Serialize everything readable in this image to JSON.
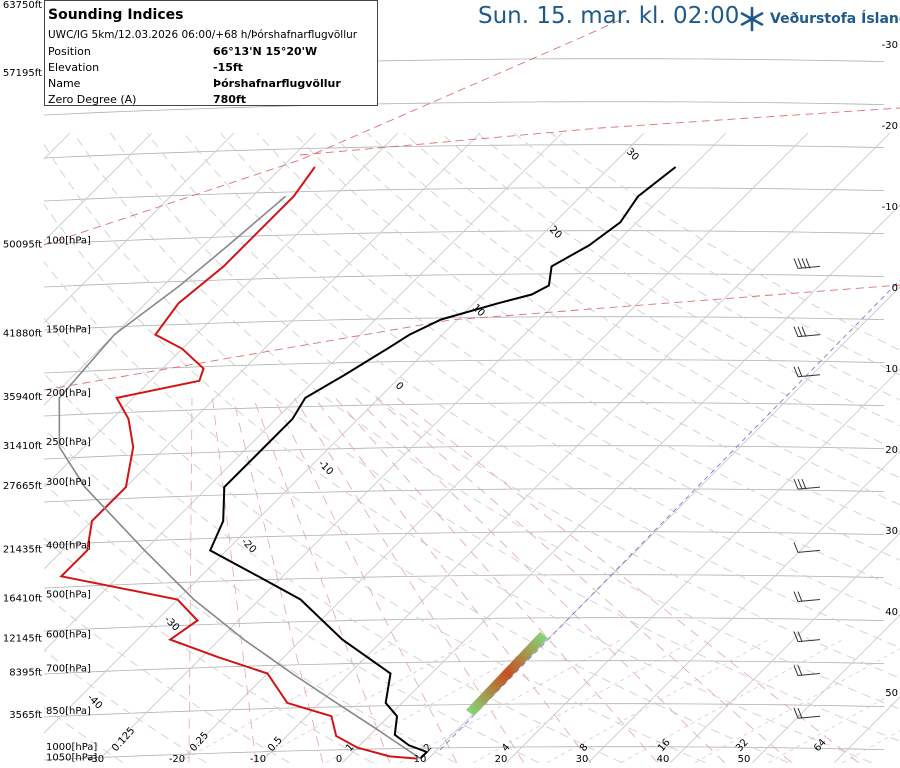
{
  "info_panel": {
    "title": "Sounding Indices",
    "subtitle": "UWC/IG 5km/12.03.2026 06:00/+68 h/Þórshafnarflugvöllur",
    "rows": [
      {
        "label": "Position",
        "value": "66°13'N 15°20'W"
      },
      {
        "label": "Elevation",
        "value": "-15ft"
      },
      {
        "label": "Name",
        "value": "Þórshafnarflugvöllur"
      },
      {
        "label": "Zero Degree (A)",
        "value": "780ft"
      }
    ]
  },
  "header": {
    "datetime": "Sun. 15. mar. kl. 02:00"
  },
  "logo": {
    "text": "Veðurstofa Íslands",
    "icon": "snowflake-icon",
    "color": "#1e5a8c"
  },
  "chart_data": {
    "type": "line",
    "subtype": "skew-T log-p diagram",
    "pressure_ticks": [
      {
        "p": 100,
        "label": "100[hPa]",
        "alt": "50095ft"
      },
      {
        "p": 150,
        "label": "150[hPa]",
        "alt": "41880ft"
      },
      {
        "p": 200,
        "label": "200[hPa]",
        "alt": "35940ft"
      },
      {
        "p": 250,
        "label": "250[hPa]",
        "alt": "31410ft"
      },
      {
        "p": 300,
        "label": "300[hPa]",
        "alt": "27665ft"
      },
      {
        "p": 400,
        "label": "400[hPa]",
        "alt": "21435ft"
      },
      {
        "p": 500,
        "label": "500[hPa]",
        "alt": "16410ft"
      },
      {
        "p": 600,
        "label": "600[hPa]",
        "alt": "12145ft"
      },
      {
        "p": 700,
        "label": "700[hPa]",
        "alt": "8395ft"
      },
      {
        "p": 850,
        "label": "850[hPa]",
        "alt": "3565ft"
      },
      {
        "p": 1000,
        "label": "1000[hPa]",
        "alt": ""
      },
      {
        "p": 1050,
        "label": "1050[hPa]",
        "alt": ""
      }
    ],
    "top_altitude": "63750ft",
    "upper_altitude": "57195ft",
    "bottom_temp_labels": [
      "-30",
      "-20",
      "-10",
      "0",
      "10",
      "20",
      "30",
      "40",
      "50"
    ],
    "mixing_ratio_labels": [
      "0.125",
      "0.25",
      "0.5",
      "1",
      "2",
      "4",
      "8",
      "16",
      "32",
      "64"
    ],
    "right_axis_labels": [
      "-30",
      "-20",
      "-10",
      "0",
      "10",
      "20",
      "30",
      "40",
      "50"
    ],
    "isotherm_inline_labels": [
      "30",
      "20",
      "10",
      "0",
      "-10",
      "-20",
      "-30",
      "-40"
    ],
    "series": [
      {
        "role": "temperature",
        "color": "#000000",
        "points": [
          [
            1030,
            -1
          ],
          [
            1000,
            -1
          ],
          [
            970,
            -4
          ],
          [
            925,
            -7
          ],
          [
            850,
            -9
          ],
          [
            800,
            -12
          ],
          [
            700,
            -15
          ],
          [
            600,
            -25
          ],
          [
            500,
            -35
          ],
          [
            450,
            -43
          ],
          [
            400,
            -52
          ],
          [
            350,
            -54
          ],
          [
            300,
            -58
          ],
          [
            250,
            -58
          ],
          [
            220,
            -58
          ],
          [
            200,
            -59
          ],
          [
            180,
            -57
          ],
          [
            160,
            -55
          ],
          [
            150,
            -54
          ],
          [
            140,
            -52
          ],
          [
            130,
            -47
          ],
          [
            125,
            -44
          ],
          [
            120,
            -43
          ],
          [
            110,
            -45
          ],
          [
            100,
            -43
          ],
          [
            90,
            -42
          ],
          [
            80,
            -43
          ],
          [
            70,
            -42
          ]
        ]
      },
      {
        "role": "dewpoint",
        "color": "#d21414",
        "points": [
          [
            1030,
            -1.5
          ],
          [
            1020,
            -5
          ],
          [
            980,
            -10
          ],
          [
            930,
            -14
          ],
          [
            850,
            -17
          ],
          [
            800,
            -24
          ],
          [
            700,
            -30
          ],
          [
            650,
            -38
          ],
          [
            600,
            -46
          ],
          [
            550,
            -45
          ],
          [
            500,
            -50
          ],
          [
            450,
            -67
          ],
          [
            400,
            -67
          ],
          [
            350,
            -70
          ],
          [
            300,
            -70
          ],
          [
            250,
            -74
          ],
          [
            220,
            -78
          ],
          [
            200,
            -82
          ],
          [
            185,
            -74
          ],
          [
            175,
            -75
          ],
          [
            160,
            -80
          ],
          [
            150,
            -85
          ],
          [
            130,
            -86
          ],
          [
            110,
            -85
          ],
          [
            80,
            -85
          ],
          [
            70,
            -86
          ]
        ]
      },
      {
        "role": "parcel",
        "color": "#888888",
        "points": [
          [
            1030,
            -1
          ],
          [
            900,
            -10
          ],
          [
            800,
            -18
          ],
          [
            700,
            -27
          ],
          [
            600,
            -37
          ],
          [
            500,
            -48
          ],
          [
            400,
            -60
          ],
          [
            300,
            -75
          ],
          [
            250,
            -83
          ],
          [
            200,
            -89
          ],
          [
            150,
            -90
          ],
          [
            120,
            -88
          ],
          [
            100,
            -87
          ],
          [
            80,
            -86
          ]
        ]
      }
    ],
    "wind_barbs": [
      {
        "p": 110,
        "kt": 35
      },
      {
        "p": 150,
        "kt": 30
      },
      {
        "p": 180,
        "kt": 15
      },
      {
        "p": 300,
        "kt": 25
      },
      {
        "p": 400,
        "kt": 10
      },
      {
        "p": 500,
        "kt": 15
      },
      {
        "p": 600,
        "kt": 15
      },
      {
        "p": 700,
        "kt": 15
      },
      {
        "p": 850,
        "kt": 15
      }
    ]
  }
}
